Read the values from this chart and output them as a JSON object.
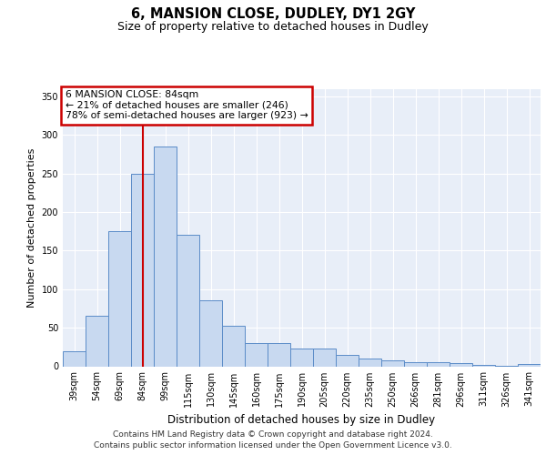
{
  "title1": "6, MANSION CLOSE, DUDLEY, DY1 2GY",
  "title2": "Size of property relative to detached houses in Dudley",
  "xlabel": "Distribution of detached houses by size in Dudley",
  "ylabel": "Number of detached properties",
  "categories": [
    "39sqm",
    "54sqm",
    "69sqm",
    "84sqm",
    "99sqm",
    "115sqm",
    "130sqm",
    "145sqm",
    "160sqm",
    "175sqm",
    "190sqm",
    "205sqm",
    "220sqm",
    "235sqm",
    "250sqm",
    "266sqm",
    "281sqm",
    "296sqm",
    "311sqm",
    "326sqm",
    "341sqm"
  ],
  "values": [
    20,
    65,
    175,
    250,
    285,
    170,
    85,
    52,
    30,
    30,
    23,
    23,
    15,
    10,
    8,
    5,
    5,
    4,
    2,
    1,
    3
  ],
  "bar_color": "#c8d9f0",
  "bar_edge_color": "#5b8cc8",
  "red_line_index": 3,
  "annotation_line1": "6 MANSION CLOSE: 84sqm",
  "annotation_line2": "← 21% of detached houses are smaller (246)",
  "annotation_line3": "78% of semi-detached houses are larger (923) →",
  "annotation_box_color": "#ffffff",
  "annotation_box_edge_color": "#cc0000",
  "red_line_color": "#cc0000",
  "ylim": [
    0,
    360
  ],
  "yticks": [
    0,
    50,
    100,
    150,
    200,
    250,
    300,
    350
  ],
  "background_color": "#e8eef8",
  "footer1": "Contains HM Land Registry data © Crown copyright and database right 2024.",
  "footer2": "Contains public sector information licensed under the Open Government Licence v3.0."
}
